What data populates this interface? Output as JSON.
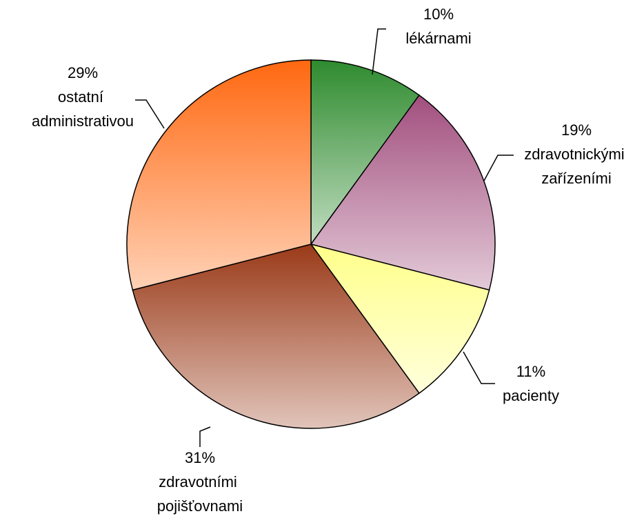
{
  "chart_data": {
    "type": "pie",
    "categories": [
      "lékárnami",
      "zdravotnickými zařízeními",
      "pacienty",
      "zdravotními pojišťovnami",
      "ostatní administrativou"
    ],
    "values": [
      10,
      19,
      11,
      31,
      29
    ],
    "value_labels": [
      "10%",
      "19%",
      "11%",
      "31%",
      "29%"
    ],
    "colors": [
      "#2e8b2e",
      "#a24f7e",
      "#ffff8a",
      "#9a3a18",
      "#ff6810"
    ]
  }
}
